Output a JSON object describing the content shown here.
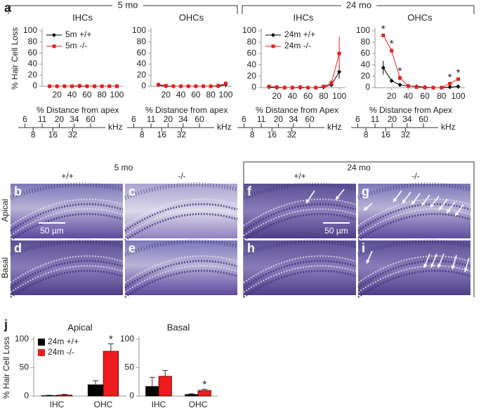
{
  "figure": {
    "panel_a": {
      "label": "a",
      "groups": [
        "5 mo",
        "24 mo"
      ]
    },
    "micrographs": {
      "groups": [
        "5 mo",
        "24 mo"
      ],
      "genotypes": [
        "+/+",
        "-/-",
        "+/+",
        "-/-"
      ],
      "rows": [
        "Apical",
        "Basal"
      ],
      "panels": [
        "b",
        "c",
        "f",
        "g",
        "d",
        "e",
        "h",
        "i"
      ],
      "scale_bars": [
        "50 µm",
        "50 µm"
      ]
    },
    "panel_j": {
      "label": "j"
    }
  },
  "chart_data": [
    {
      "type": "line",
      "title": "IHCs",
      "y_label": "% Hair Cell Loss",
      "x": [
        10,
        20,
        30,
        40,
        50,
        60,
        70,
        80,
        90,
        100
      ],
      "series": [
        {
          "name": "5m +/+",
          "color": "#000000",
          "values": [
            0,
            0,
            0,
            0,
            0,
            0,
            0,
            0,
            0,
            0
          ]
        },
        {
          "name": "5m -/-",
          "color": "#e8211f",
          "values": [
            0,
            0,
            0,
            0,
            1,
            0,
            0,
            0,
            0,
            0
          ]
        }
      ],
      "xlim": [
        0,
        108
      ],
      "ylim": [
        0,
        100
      ],
      "xticks": [
        20,
        40,
        60,
        80,
        100
      ],
      "yticks": [
        0,
        20,
        40,
        60,
        80,
        100
      ],
      "legend": "upper left",
      "freq_axis": {
        "title": "% Distance from apex",
        "lim": [
          5.5,
          75
        ],
        "ticks_upper": [
          6,
          11,
          20,
          34,
          60
        ],
        "ticks_lower": [
          8,
          16,
          32
        ],
        "unit": "kHz"
      }
    },
    {
      "type": "line",
      "title": "OHCs",
      "x": [
        10,
        20,
        30,
        40,
        50,
        60,
        70,
        80,
        90,
        100
      ],
      "series": [
        {
          "color": "#000000",
          "values": [
            2,
            0,
            0,
            0,
            0,
            0,
            0,
            0,
            0,
            3
          ]
        },
        {
          "color": "#e8211f",
          "values": [
            3,
            1,
            0,
            0,
            0,
            0,
            0,
            0,
            1,
            5
          ]
        }
      ],
      "xlim": [
        0,
        108
      ],
      "ylim": [
        0,
        100
      ],
      "xticks": [
        20,
        40,
        60,
        80,
        100
      ],
      "yticks": [
        0,
        20,
        40,
        60,
        80,
        100
      ],
      "freq_axis": {
        "title": "% Distance from apex",
        "lim": [
          5.5,
          75
        ],
        "ticks_upper": [
          6,
          11,
          20,
          34,
          60
        ],
        "ticks_lower": [
          8,
          16,
          32
        ],
        "unit": "kHz"
      }
    },
    {
      "type": "line",
      "title": "IHCs",
      "x": [
        10,
        20,
        30,
        40,
        50,
        60,
        70,
        80,
        90,
        100
      ],
      "series": [
        {
          "name": "24m +/+",
          "color": "#000000",
          "values": [
            1,
            0,
            0,
            0,
            0,
            0,
            0,
            1,
            5,
            28
          ],
          "errors": [
            2,
            1,
            1,
            1,
            1,
            1,
            1,
            2,
            4,
            12
          ]
        },
        {
          "name": "24m -/-",
          "color": "#e8211f",
          "values": [
            2,
            1,
            0,
            0,
            1,
            0,
            0,
            2,
            8,
            60
          ],
          "errors": [
            2,
            1,
            1,
            1,
            1,
            1,
            1,
            3,
            5,
            30
          ]
        }
      ],
      "xlim": [
        0,
        108
      ],
      "ylim": [
        0,
        100
      ],
      "xticks": [
        20,
        40,
        60,
        80,
        100
      ],
      "yticks": [
        0,
        20,
        40,
        60,
        80,
        100
      ],
      "legend": "upper left",
      "freq_axis": {
        "title": "% Distance from Apex",
        "lim": [
          5.5,
          75
        ],
        "ticks_upper": [
          6,
          11,
          20,
          34,
          60
        ],
        "ticks_lower": [
          8,
          16,
          32
        ],
        "unit": "kHz"
      }
    },
    {
      "type": "line",
      "title": "OHCs",
      "x": [
        10,
        20,
        30,
        40,
        50,
        60,
        70,
        80,
        90,
        100
      ],
      "series": [
        {
          "color": "#000000",
          "values": [
            35,
            12,
            5,
            3,
            2,
            1,
            0,
            0,
            1,
            2
          ],
          "errors": [
            12,
            3,
            2,
            1,
            1,
            1,
            1,
            1,
            1,
            1
          ]
        },
        {
          "color": "#e8211f",
          "values": [
            92,
            65,
            17,
            3,
            1,
            0,
            0,
            0,
            7,
            15
          ],
          "errors": [
            3,
            4,
            4,
            1,
            1,
            1,
            1,
            1,
            3,
            3
          ]
        }
      ],
      "xlim": [
        0,
        108
      ],
      "ylim": [
        0,
        100
      ],
      "xticks": [
        20,
        40,
        60,
        80,
        100
      ],
      "yticks": [
        0,
        20,
        40,
        60,
        80,
        100
      ],
      "annotations": [
        {
          "x": 10,
          "text": "*"
        },
        {
          "x": 20,
          "text": "*"
        },
        {
          "x": 30,
          "text": "*"
        },
        {
          "x": 90,
          "text": "*"
        },
        {
          "x": 100,
          "text": "*"
        }
      ],
      "freq_axis": {
        "title": "% Distance from Apex",
        "lim": [
          5.5,
          75
        ],
        "ticks_upper": [
          6,
          11,
          20,
          34,
          60
        ],
        "ticks_lower": [
          8,
          16,
          32
        ],
        "unit": "kHz"
      }
    },
    {
      "type": "bar",
      "title": "Apical",
      "y_label": "% Hair Cell Loss",
      "categories": [
        "IHC",
        "OHC"
      ],
      "series": [
        {
          "name": "24m +/+",
          "color": "#000000",
          "values": [
            1,
            20
          ],
          "errors": [
            0.5,
            7
          ]
        },
        {
          "name": "24m -/-",
          "color": "#ee1c1c",
          "values": [
            2,
            79
          ],
          "errors": [
            1,
            13
          ]
        }
      ],
      "ylim": [
        0,
        100
      ],
      "yticks": [
        0,
        50,
        100
      ],
      "legend": "upper left",
      "annotations": [
        {
          "x": "OHC",
          "text": "*"
        }
      ]
    },
    {
      "type": "bar",
      "title": "Basal",
      "categories": [
        "IHC",
        "OHC"
      ],
      "series": [
        {
          "color": "#000000",
          "values": [
            17,
            3
          ],
          "errors": [
            16,
            1
          ]
        },
        {
          "color": "#ee1c1c",
          "values": [
            35,
            10
          ],
          "errors": [
            10,
            2
          ]
        }
      ],
      "ylim": [
        0,
        100
      ],
      "yticks": [
        0,
        50,
        100
      ],
      "annotations": [
        {
          "x": "OHC",
          "text": "*"
        }
      ]
    }
  ]
}
